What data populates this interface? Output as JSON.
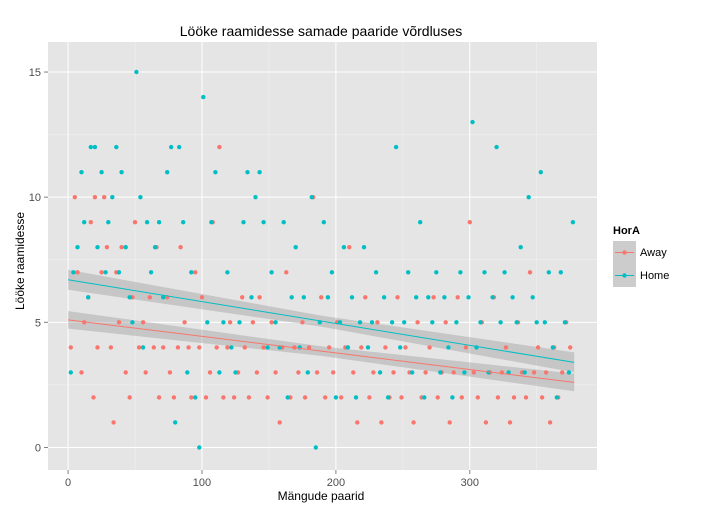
{
  "chart_data": {
    "type": "scatter",
    "title": "Lööke raamidesse samade paaride võrdluses",
    "xlabel": "Mängude paarid",
    "ylabel": "Lööke raamidesse",
    "xlim": [
      -15,
      395
    ],
    "ylim": [
      -0.9,
      16.2
    ],
    "x_ticks": [
      0,
      100,
      200,
      300
    ],
    "y_ticks": [
      0,
      5,
      10,
      15
    ],
    "grid": true,
    "legend": {
      "title": "HorA",
      "position": "right",
      "entries": [
        "Away",
        "Home"
      ]
    },
    "series": [
      {
        "name": "Away",
        "color": "#F8766D",
        "trend": {
          "x": [
            0,
            378
          ],
          "y": [
            5.1,
            2.6
          ],
          "ci_halfwidth": [
            0.35,
            0.35
          ]
        },
        "points": [
          [
            2,
            4
          ],
          [
            5,
            10
          ],
          [
            7,
            7
          ],
          [
            10,
            3
          ],
          [
            12,
            5
          ],
          [
            15,
            6
          ],
          [
            17,
            9
          ],
          [
            19,
            2
          ],
          [
            20,
            10
          ],
          [
            22,
            4
          ],
          [
            25,
            7
          ],
          [
            27,
            10
          ],
          [
            29,
            8
          ],
          [
            32,
            4
          ],
          [
            34,
            1
          ],
          [
            36,
            7
          ],
          [
            38,
            5
          ],
          [
            40,
            8
          ],
          [
            43,
            3
          ],
          [
            46,
            2
          ],
          [
            48,
            6
          ],
          [
            50,
            9
          ],
          [
            53,
            4
          ],
          [
            56,
            5
          ],
          [
            58,
            3
          ],
          [
            61,
            6
          ],
          [
            64,
            4
          ],
          [
            66,
            8
          ],
          [
            68,
            2
          ],
          [
            71,
            4
          ],
          [
            74,
            6
          ],
          [
            76,
            3
          ],
          [
            79,
            2
          ],
          [
            82,
            4
          ],
          [
            84,
            8
          ],
          [
            87,
            5
          ],
          [
            90,
            4
          ],
          [
            92,
            2
          ],
          [
            95,
            7
          ],
          [
            98,
            4
          ],
          [
            100,
            6
          ],
          [
            103,
            2
          ],
          [
            106,
            3
          ],
          [
            108,
            9
          ],
          [
            111,
            4
          ],
          [
            113,
            12
          ],
          [
            116,
            2
          ],
          [
            119,
            4
          ],
          [
            121,
            5
          ],
          [
            124,
            2
          ],
          [
            127,
            3
          ],
          [
            130,
            6
          ],
          [
            132,
            4
          ],
          [
            135,
            2
          ],
          [
            138,
            5
          ],
          [
            141,
            3
          ],
          [
            143,
            6
          ],
          [
            146,
            4
          ],
          [
            149,
            2
          ],
          [
            152,
            5
          ],
          [
            155,
            3
          ],
          [
            158,
            1
          ],
          [
            160,
            4
          ],
          [
            163,
            7
          ],
          [
            166,
            2
          ],
          [
            169,
            4
          ],
          [
            172,
            3
          ],
          [
            175,
            5
          ],
          [
            177,
            2
          ],
          [
            180,
            4
          ],
          [
            183,
            10
          ],
          [
            186,
            3
          ],
          [
            189,
            6
          ],
          [
            192,
            2
          ],
          [
            195,
            4
          ],
          [
            198,
            3
          ],
          [
            201,
            5
          ],
          [
            204,
            2
          ],
          [
            207,
            4
          ],
          [
            210,
            8
          ],
          [
            213,
            3
          ],
          [
            216,
            1
          ],
          [
            219,
            4
          ],
          [
            222,
            6
          ],
          [
            225,
            2
          ],
          [
            228,
            3
          ],
          [
            231,
            5
          ],
          [
            234,
            1
          ],
          [
            237,
            4
          ],
          [
            240,
            2
          ],
          [
            243,
            3
          ],
          [
            246,
            6
          ],
          [
            249,
            2
          ],
          [
            252,
            4
          ],
          [
            255,
            3
          ],
          [
            258,
            1
          ],
          [
            261,
            5
          ],
          [
            264,
            2
          ],
          [
            267,
            3
          ],
          [
            270,
            4
          ],
          [
            273,
            6
          ],
          [
            276,
            2
          ],
          [
            279,
            3
          ],
          [
            282,
            5
          ],
          [
            285,
            1
          ],
          [
            288,
            3
          ],
          [
            291,
            6
          ],
          [
            294,
            2
          ],
          [
            297,
            4
          ],
          [
            300,
            9
          ],
          [
            303,
            3
          ],
          [
            306,
            2
          ],
          [
            309,
            5
          ],
          [
            312,
            1
          ],
          [
            315,
            3
          ],
          [
            318,
            6
          ],
          [
            321,
            2
          ],
          [
            324,
            3
          ],
          [
            327,
            4
          ],
          [
            330,
            1
          ],
          [
            333,
            2
          ],
          [
            336,
            5
          ],
          [
            339,
            3
          ],
          [
            342,
            2
          ],
          [
            345,
            7
          ],
          [
            348,
            3
          ],
          [
            351,
            4
          ],
          [
            354,
            2
          ],
          [
            357,
            3
          ],
          [
            360,
            1
          ],
          [
            363,
            4
          ],
          [
            366,
            2
          ],
          [
            369,
            3
          ],
          [
            372,
            5
          ],
          [
            375,
            4
          ]
        ]
      },
      {
        "name": "Home",
        "color": "#00BFC4",
        "trend": {
          "x": [
            0,
            378
          ],
          "y": [
            6.7,
            3.4
          ],
          "ci_halfwidth": [
            0.4,
            0.4
          ]
        },
        "points": [
          [
            2,
            3
          ],
          [
            4,
            7
          ],
          [
            7,
            8
          ],
          [
            10,
            11
          ],
          [
            12,
            9
          ],
          [
            15,
            6
          ],
          [
            17,
            12
          ],
          [
            20,
            12
          ],
          [
            22,
            8
          ],
          [
            25,
            11
          ],
          [
            28,
            7
          ],
          [
            30,
            9
          ],
          [
            33,
            10
          ],
          [
            36,
            12
          ],
          [
            38,
            7
          ],
          [
            40,
            11
          ],
          [
            43,
            8
          ],
          [
            46,
            6
          ],
          [
            48,
            5
          ],
          [
            51,
            15
          ],
          [
            54,
            10
          ],
          [
            56,
            4
          ],
          [
            59,
            9
          ],
          [
            62,
            7
          ],
          [
            65,
            8
          ],
          [
            68,
            9
          ],
          [
            71,
            6
          ],
          [
            74,
            11
          ],
          [
            77,
            12
          ],
          [
            80,
            1
          ],
          [
            83,
            12
          ],
          [
            86,
            9
          ],
          [
            89,
            3
          ],
          [
            92,
            7
          ],
          [
            95,
            2
          ],
          [
            98,
            0
          ],
          [
            101,
            14
          ],
          [
            104,
            5
          ],
          [
            107,
            9
          ],
          [
            110,
            11
          ],
          [
            113,
            3
          ],
          [
            116,
            5
          ],
          [
            119,
            7
          ],
          [
            122,
            4
          ],
          [
            125,
            3
          ],
          [
            128,
            5
          ],
          [
            131,
            9
          ],
          [
            134,
            11
          ],
          [
            137,
            6
          ],
          [
            140,
            10
          ],
          [
            143,
            11
          ],
          [
            146,
            9
          ],
          [
            149,
            4
          ],
          [
            152,
            7
          ],
          [
            155,
            5
          ],
          [
            158,
            4
          ],
          [
            161,
            9
          ],
          [
            164,
            2
          ],
          [
            167,
            6
          ],
          [
            170,
            8
          ],
          [
            173,
            4
          ],
          [
            176,
            6
          ],
          [
            179,
            3
          ],
          [
            182,
            10
          ],
          [
            185,
            0
          ],
          [
            188,
            5
          ],
          [
            191,
            9
          ],
          [
            194,
            6
          ],
          [
            197,
            7
          ],
          [
            200,
            2
          ],
          [
            203,
            5
          ],
          [
            206,
            8
          ],
          [
            209,
            4
          ],
          [
            212,
            6
          ],
          [
            215,
            2
          ],
          [
            218,
            5
          ],
          [
            221,
            8
          ],
          [
            224,
            4
          ],
          [
            227,
            5
          ],
          [
            230,
            7
          ],
          [
            233,
            3
          ],
          [
            236,
            6
          ],
          [
            239,
            2
          ],
          [
            242,
            5
          ],
          [
            245,
            12
          ],
          [
            248,
            4
          ],
          [
            251,
            5
          ],
          [
            254,
            7
          ],
          [
            257,
            3
          ],
          [
            260,
            6
          ],
          [
            263,
            9
          ],
          [
            266,
            2
          ],
          [
            269,
            6
          ],
          [
            272,
            5
          ],
          [
            275,
            7
          ],
          [
            278,
            3
          ],
          [
            281,
            6
          ],
          [
            284,
            4
          ],
          [
            287,
            2
          ],
          [
            290,
            5
          ],
          [
            293,
            7
          ],
          [
            296,
            3
          ],
          [
            299,
            6
          ],
          [
            302,
            13
          ],
          [
            305,
            4
          ],
          [
            308,
            5
          ],
          [
            311,
            7
          ],
          [
            314,
            3
          ],
          [
            317,
            6
          ],
          [
            320,
            12
          ],
          [
            323,
            5
          ],
          [
            326,
            7
          ],
          [
            329,
            3
          ],
          [
            332,
            6
          ],
          [
            335,
            5
          ],
          [
            338,
            8
          ],
          [
            341,
            3
          ],
          [
            344,
            10
          ],
          [
            347,
            6
          ],
          [
            350,
            5
          ],
          [
            353,
            11
          ],
          [
            356,
            5
          ],
          [
            359,
            7
          ],
          [
            362,
            4
          ],
          [
            365,
            2
          ],
          [
            368,
            7
          ],
          [
            371,
            5
          ],
          [
            374,
            3
          ],
          [
            377,
            9
          ]
        ]
      }
    ]
  }
}
